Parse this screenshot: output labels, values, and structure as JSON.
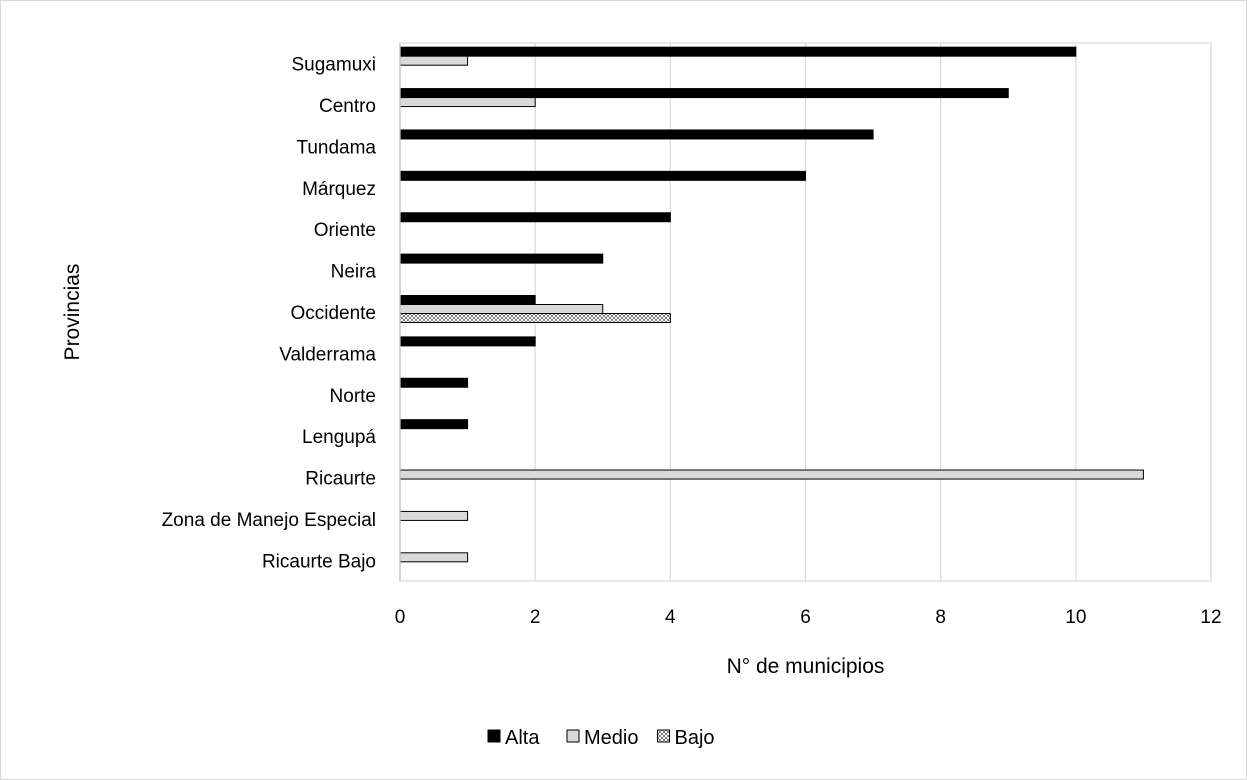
{
  "chart_data": {
    "type": "bar",
    "orientation": "horizontal",
    "xlabel": "N° de municipios",
    "ylabel": "Provincias",
    "xlim": [
      0,
      12
    ],
    "xticks": [
      0,
      2,
      4,
      6,
      8,
      10,
      12
    ],
    "grid": "vertical",
    "legend_position": "bottom",
    "categories": [
      "Sugamuxi",
      "Centro",
      "Tundama",
      "Márquez",
      "Oriente",
      "Neira",
      "Occidente",
      "Valderrama",
      "Norte",
      "Lengupá",
      "Ricaurte",
      "Zona de Manejo Especial",
      "Ricaurte Bajo"
    ],
    "series": [
      {
        "name": "Alta",
        "color": "#000000",
        "pattern": "solid",
        "values": [
          10,
          9,
          7,
          6,
          4,
          3,
          2,
          2,
          1,
          1,
          0,
          0,
          0
        ]
      },
      {
        "name": "Medio",
        "color": "#d9d9d9",
        "pattern": "solid",
        "values": [
          1,
          2,
          0,
          0,
          0,
          0,
          3,
          0,
          0,
          0,
          11,
          1,
          1
        ]
      },
      {
        "name": "Bajo",
        "color": "#ffffff",
        "pattern": "dotted",
        "values": [
          0,
          0,
          0,
          0,
          0,
          0,
          4,
          0,
          0,
          0,
          0,
          0,
          0
        ]
      }
    ]
  }
}
